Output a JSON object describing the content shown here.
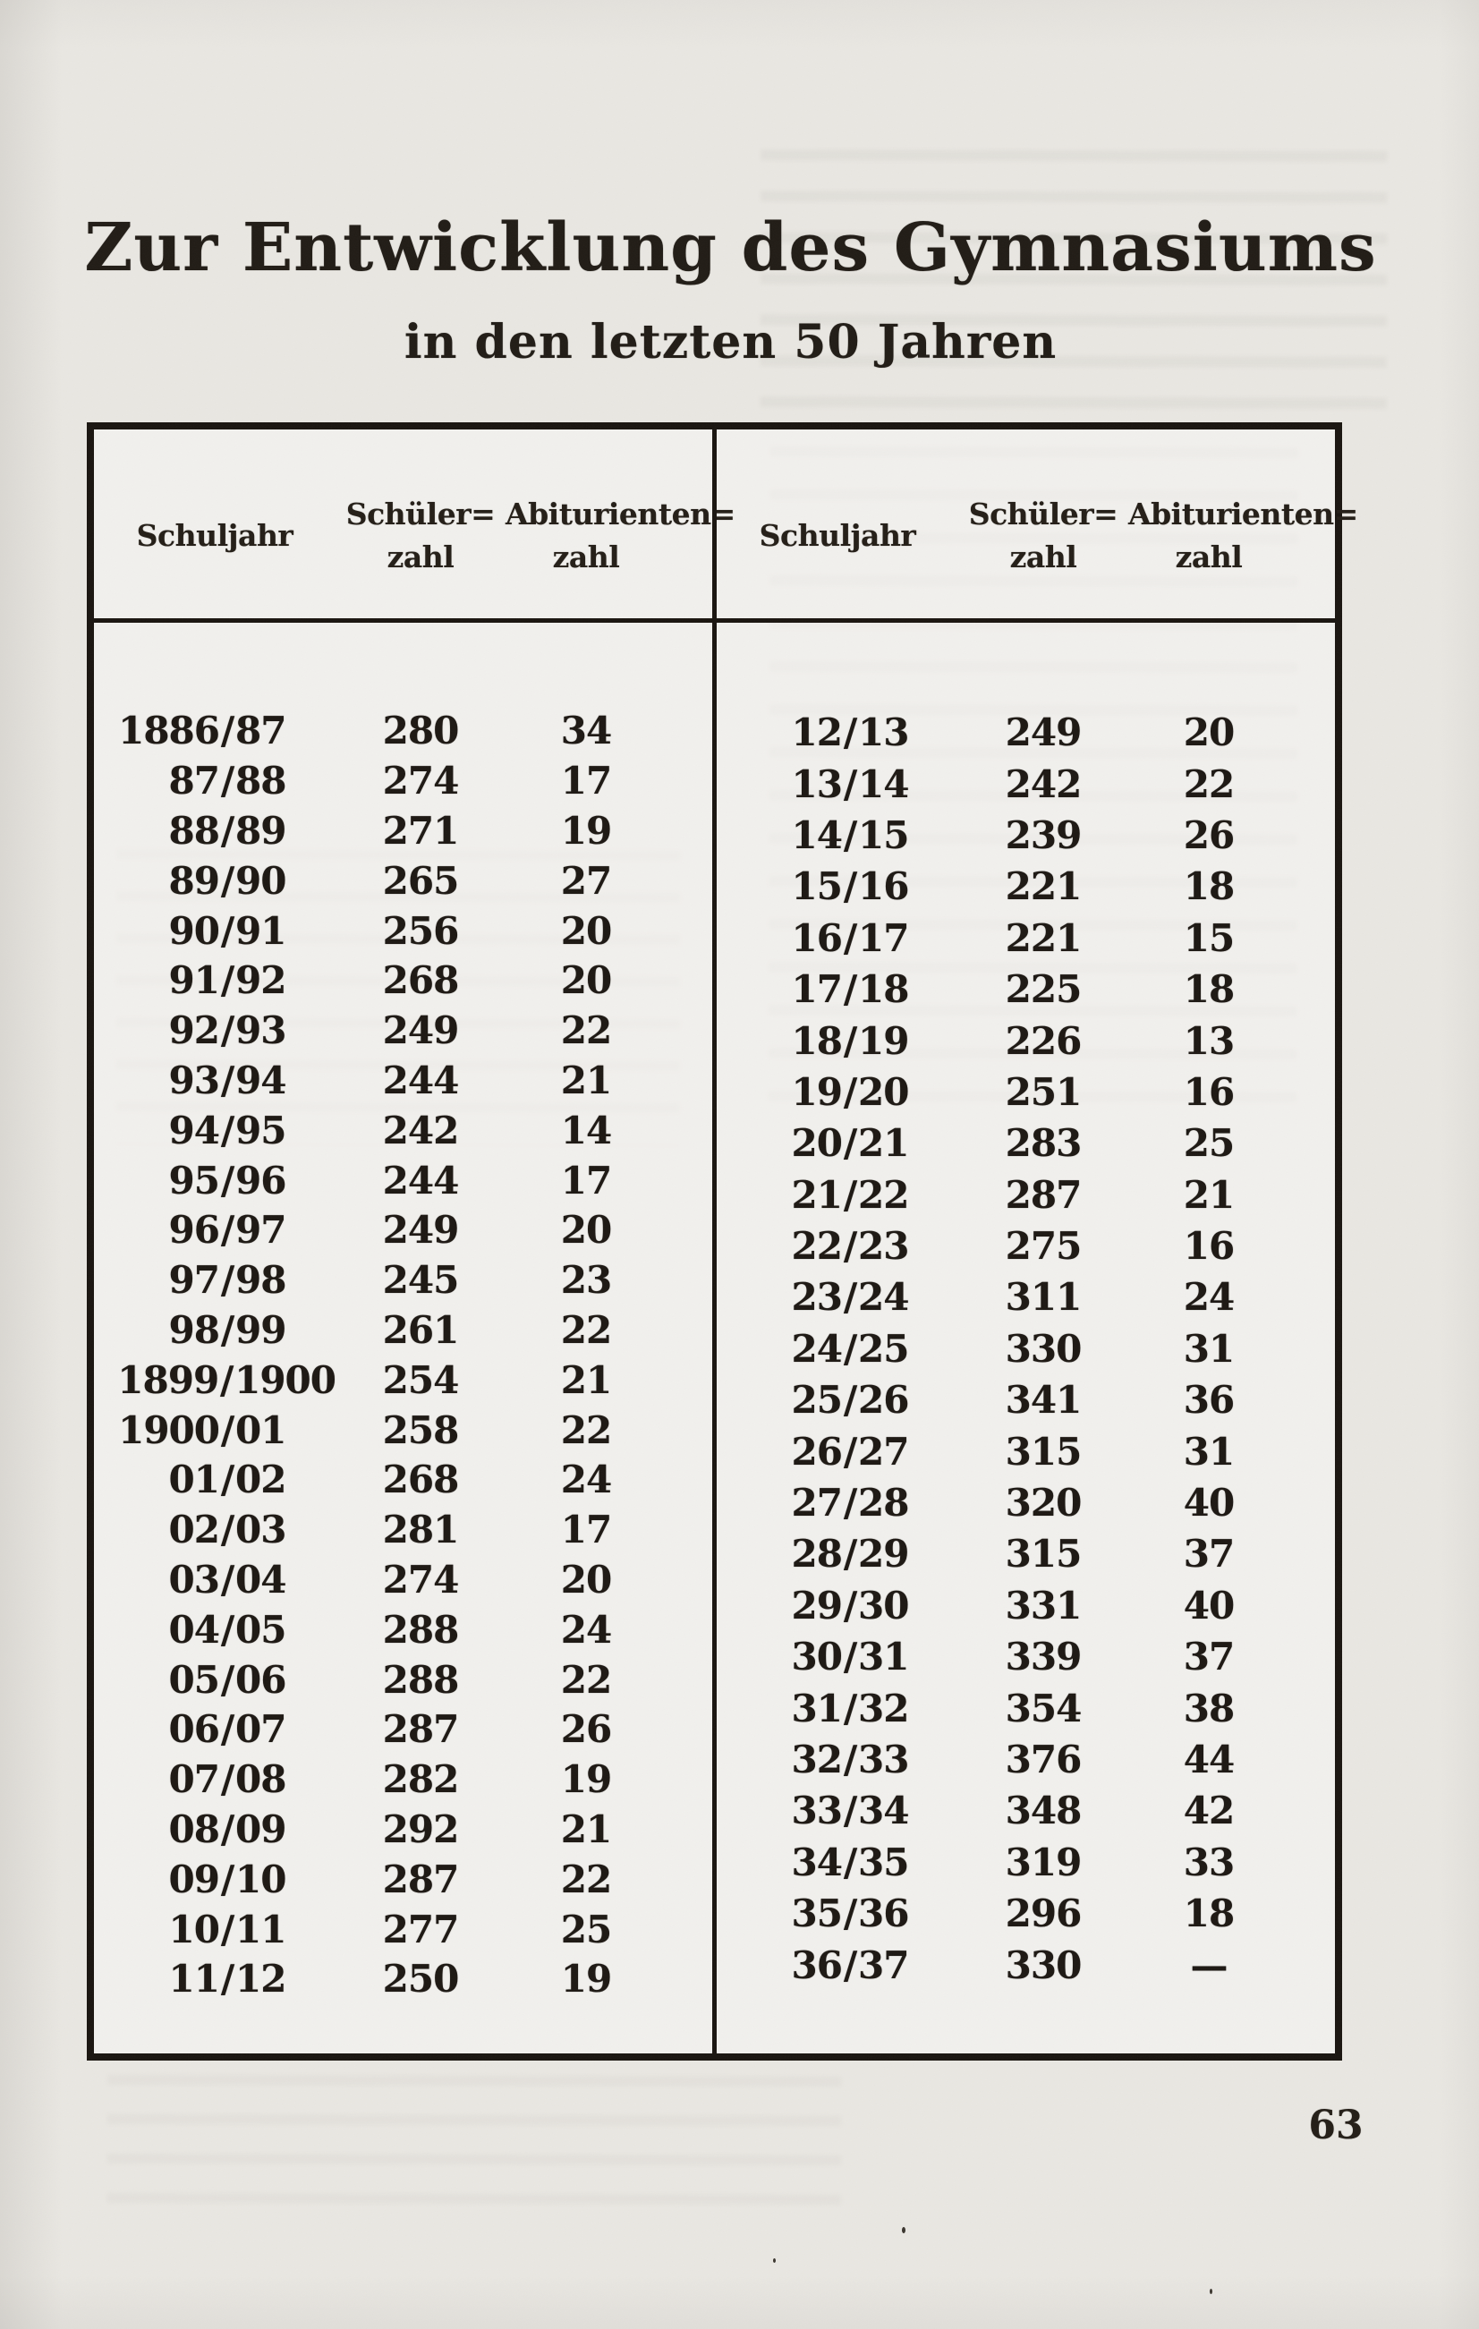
{
  "colors": {
    "paper": "#e9e7e2",
    "ink": "#1d1813"
  },
  "page": {
    "number": "63"
  },
  "title": {
    "line1": "Zur Entwicklung des Gymnasiums",
    "line2": "in den letzten 50 Jahren"
  },
  "table": {
    "headers": {
      "schuljahr": "Schuljahr",
      "schuelerzahl_line1": "Schüler=",
      "schuelerzahl_line2": "zahl",
      "abiturientenzahl_line1": "Abiturienten=",
      "abiturientenzahl_line2": "zahl"
    },
    "left_rows": [
      {
        "schuljahr": "1886/87",
        "schuelerzahl": "280",
        "abiturientenzahl": "34"
      },
      {
        "schuljahr": "87/88",
        "schuelerzahl": "274",
        "abiturientenzahl": "17"
      },
      {
        "schuljahr": "88/89",
        "schuelerzahl": "271",
        "abiturientenzahl": "19"
      },
      {
        "schuljahr": "89/90",
        "schuelerzahl": "265",
        "abiturientenzahl": "27"
      },
      {
        "schuljahr": "90/91",
        "schuelerzahl": "256",
        "abiturientenzahl": "20"
      },
      {
        "schuljahr": "91/92",
        "schuelerzahl": "268",
        "abiturientenzahl": "20"
      },
      {
        "schuljahr": "92/93",
        "schuelerzahl": "249",
        "abiturientenzahl": "22"
      },
      {
        "schuljahr": "93/94",
        "schuelerzahl": "244",
        "abiturientenzahl": "21"
      },
      {
        "schuljahr": "94/95",
        "schuelerzahl": "242",
        "abiturientenzahl": "14"
      },
      {
        "schuljahr": "95/96",
        "schuelerzahl": "244",
        "abiturientenzahl": "17"
      },
      {
        "schuljahr": "96/97",
        "schuelerzahl": "249",
        "abiturientenzahl": "20"
      },
      {
        "schuljahr": "97/98",
        "schuelerzahl": "245",
        "abiturientenzahl": "23"
      },
      {
        "schuljahr": "98/99",
        "schuelerzahl": "261",
        "abiturientenzahl": "22"
      },
      {
        "schuljahr": "1899/1900",
        "schuelerzahl": "254",
        "abiturientenzahl": "21"
      },
      {
        "schuljahr": "1900/01",
        "schuelerzahl": "258",
        "abiturientenzahl": "22"
      },
      {
        "schuljahr": "01/02",
        "schuelerzahl": "268",
        "abiturientenzahl": "24"
      },
      {
        "schuljahr": "02/03",
        "schuelerzahl": "281",
        "abiturientenzahl": "17"
      },
      {
        "schuljahr": "03/04",
        "schuelerzahl": "274",
        "abiturientenzahl": "20"
      },
      {
        "schuljahr": "04/05",
        "schuelerzahl": "288",
        "abiturientenzahl": "24"
      },
      {
        "schuljahr": "05/06",
        "schuelerzahl": "288",
        "abiturientenzahl": "22"
      },
      {
        "schuljahr": "06/07",
        "schuelerzahl": "287",
        "abiturientenzahl": "26"
      },
      {
        "schuljahr": "07/08",
        "schuelerzahl": "282",
        "abiturientenzahl": "19"
      },
      {
        "schuljahr": "08/09",
        "schuelerzahl": "292",
        "abiturientenzahl": "21"
      },
      {
        "schuljahr": "09/10",
        "schuelerzahl": "287",
        "abiturientenzahl": "22"
      },
      {
        "schuljahr": "10/11",
        "schuelerzahl": "277",
        "abiturientenzahl": "25"
      },
      {
        "schuljahr": "11/12",
        "schuelerzahl": "250",
        "abiturientenzahl": "19"
      }
    ],
    "right_rows": [
      {
        "schuljahr": "12/13",
        "schuelerzahl": "249",
        "abiturientenzahl": "20"
      },
      {
        "schuljahr": "13/14",
        "schuelerzahl": "242",
        "abiturientenzahl": "22"
      },
      {
        "schuljahr": "14/15",
        "schuelerzahl": "239",
        "abiturientenzahl": "26"
      },
      {
        "schuljahr": "15/16",
        "schuelerzahl": "221",
        "abiturientenzahl": "18"
      },
      {
        "schuljahr": "16/17",
        "schuelerzahl": "221",
        "abiturientenzahl": "15"
      },
      {
        "schuljahr": "17/18",
        "schuelerzahl": "225",
        "abiturientenzahl": "18"
      },
      {
        "schuljahr": "18/19",
        "schuelerzahl": "226",
        "abiturientenzahl": "13"
      },
      {
        "schuljahr": "19/20",
        "schuelerzahl": "251",
        "abiturientenzahl": "16"
      },
      {
        "schuljahr": "20/21",
        "schuelerzahl": "283",
        "abiturientenzahl": "25"
      },
      {
        "schuljahr": "21/22",
        "schuelerzahl": "287",
        "abiturientenzahl": "21"
      },
      {
        "schuljahr": "22/23",
        "schuelerzahl": "275",
        "abiturientenzahl": "16"
      },
      {
        "schuljahr": "23/24",
        "schuelerzahl": "311",
        "abiturientenzahl": "24"
      },
      {
        "schuljahr": "24/25",
        "schuelerzahl": "330",
        "abiturientenzahl": "31"
      },
      {
        "schuljahr": "25/26",
        "schuelerzahl": "341",
        "abiturientenzahl": "36"
      },
      {
        "schuljahr": "26/27",
        "schuelerzahl": "315",
        "abiturientenzahl": "31"
      },
      {
        "schuljahr": "27/28",
        "schuelerzahl": "320",
        "abiturientenzahl": "40"
      },
      {
        "schuljahr": "28/29",
        "schuelerzahl": "315",
        "abiturientenzahl": "37"
      },
      {
        "schuljahr": "29/30",
        "schuelerzahl": "331",
        "abiturientenzahl": "40"
      },
      {
        "schuljahr": "30/31",
        "schuelerzahl": "339",
        "abiturientenzahl": "37"
      },
      {
        "schuljahr": "31/32",
        "schuelerzahl": "354",
        "abiturientenzahl": "38"
      },
      {
        "schuljahr": "32/33",
        "schuelerzahl": "376",
        "abiturientenzahl": "44"
      },
      {
        "schuljahr": "33/34",
        "schuelerzahl": "348",
        "abiturientenzahl": "42"
      },
      {
        "schuljahr": "34/35",
        "schuelerzahl": "319",
        "abiturientenzahl": "33"
      },
      {
        "schuljahr": "35/36",
        "schuelerzahl": "296",
        "abiturientenzahl": "18"
      },
      {
        "schuljahr": "36/37",
        "schuelerzahl": "330",
        "abiturientenzahl": "—"
      }
    ]
  }
}
